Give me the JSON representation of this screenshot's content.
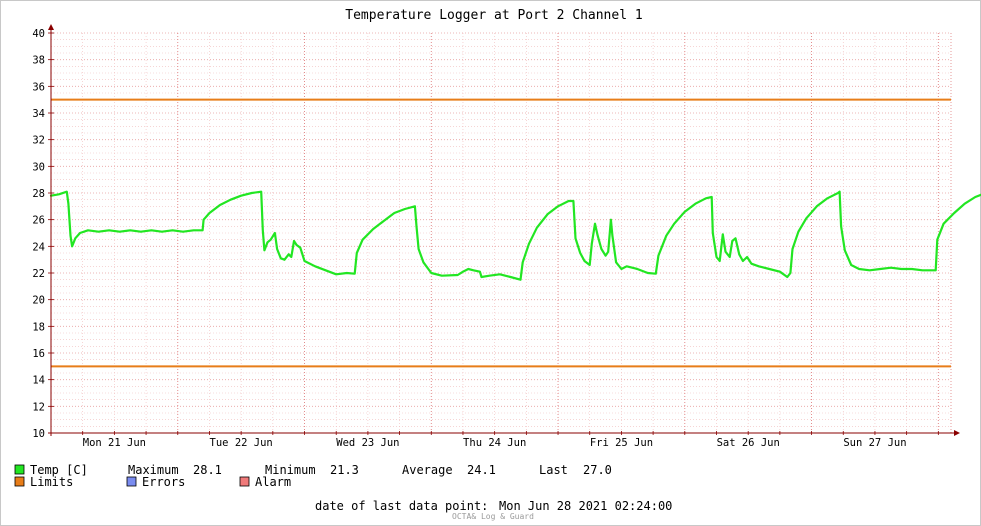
{
  "chart_data": {
    "type": "line",
    "title": "Temperature Logger at Port 2 Channel 1",
    "ylim": [
      10,
      40
    ],
    "yticks": [
      10,
      12,
      14,
      16,
      18,
      20,
      22,
      24,
      26,
      28,
      30,
      32,
      34,
      36,
      38,
      40
    ],
    "xrange_hours": [
      0,
      170.4
    ],
    "x_day_labels": [
      "Mon 21 Jun",
      "Tue 22 Jun",
      "Wed 23 Jun",
      "Thu 24 Jun",
      "Fri 25 Jun",
      "Sat 26 Jun",
      "Sun 27 Jun"
    ],
    "limits": [
      15,
      35
    ],
    "series": [
      {
        "name": "Temp [C]",
        "color": "#22e622",
        "points": [
          [
            0,
            27.8
          ],
          [
            1.5,
            27.9
          ],
          [
            3,
            28.1
          ],
          [
            3.3,
            27.2
          ],
          [
            3.7,
            24.8
          ],
          [
            4,
            24.0
          ],
          [
            4.6,
            24.6
          ],
          [
            5.5,
            25.0
          ],
          [
            7,
            25.2
          ],
          [
            9,
            25.1
          ],
          [
            11,
            25.2
          ],
          [
            13,
            25.1
          ],
          [
            15,
            25.2
          ],
          [
            17,
            25.1
          ],
          [
            19,
            25.2
          ],
          [
            21,
            25.1
          ],
          [
            23,
            25.2
          ],
          [
            25,
            25.1
          ],
          [
            27,
            25.2
          ],
          [
            28.7,
            25.2
          ],
          [
            28.9,
            26.0
          ],
          [
            30,
            26.5
          ],
          [
            32,
            27.1
          ],
          [
            34,
            27.5
          ],
          [
            36,
            27.8
          ],
          [
            38,
            28.0
          ],
          [
            39.8,
            28.1
          ],
          [
            40.1,
            25.2
          ],
          [
            40.4,
            23.7
          ],
          [
            41,
            24.3
          ],
          [
            41.6,
            24.5
          ],
          [
            42.4,
            25.0
          ],
          [
            42.8,
            23.8
          ],
          [
            43.5,
            23.1
          ],
          [
            44.2,
            23.0
          ],
          [
            45,
            23.4
          ],
          [
            45.5,
            23.2
          ],
          [
            46,
            24.4
          ],
          [
            46.5,
            24.1
          ],
          [
            47.2,
            23.9
          ],
          [
            48,
            22.9
          ],
          [
            50,
            22.5
          ],
          [
            52,
            22.2
          ],
          [
            54,
            21.9
          ],
          [
            56,
            22.0
          ],
          [
            57.5,
            21.95
          ],
          [
            57.9,
            23.5
          ],
          [
            59,
            24.5
          ],
          [
            61,
            25.3
          ],
          [
            63,
            25.9
          ],
          [
            65,
            26.5
          ],
          [
            67,
            26.8
          ],
          [
            68.9,
            27.0
          ],
          [
            69.2,
            25.5
          ],
          [
            69.6,
            23.8
          ],
          [
            70.5,
            22.8
          ],
          [
            72,
            22.0
          ],
          [
            74,
            21.8
          ],
          [
            77,
            21.85
          ],
          [
            78,
            22.1
          ],
          [
            79,
            22.3
          ],
          [
            80,
            22.2
          ],
          [
            81.2,
            22.1
          ],
          [
            81.5,
            21.7
          ],
          [
            83,
            21.8
          ],
          [
            85,
            21.9
          ],
          [
            87,
            21.7
          ],
          [
            88.9,
            21.5
          ],
          [
            89.3,
            22.8
          ],
          [
            90.5,
            24.2
          ],
          [
            92,
            25.4
          ],
          [
            94,
            26.4
          ],
          [
            96,
            27.0
          ],
          [
            98,
            27.4
          ],
          [
            98.9,
            27.4
          ],
          [
            99.3,
            24.6
          ],
          [
            100.2,
            23.5
          ],
          [
            101,
            22.9
          ],
          [
            102,
            22.6
          ],
          [
            102.4,
            24.2
          ],
          [
            103,
            25.7
          ],
          [
            103.5,
            24.8
          ],
          [
            104.2,
            23.8
          ],
          [
            105,
            23.3
          ],
          [
            105.5,
            23.6
          ],
          [
            106,
            26.0
          ],
          [
            106.3,
            24.8
          ],
          [
            107,
            22.8
          ],
          [
            108,
            22.3
          ],
          [
            109,
            22.5
          ],
          [
            111,
            22.3
          ],
          [
            113,
            22.0
          ],
          [
            114.5,
            21.95
          ],
          [
            115,
            23.3
          ],
          [
            116.5,
            24.8
          ],
          [
            118,
            25.7
          ],
          [
            120,
            26.6
          ],
          [
            122,
            27.2
          ],
          [
            124,
            27.6
          ],
          [
            125.1,
            27.7
          ],
          [
            125.3,
            25.0
          ],
          [
            126,
            23.2
          ],
          [
            126.6,
            22.9
          ],
          [
            127.2,
            24.9
          ],
          [
            127.7,
            23.6
          ],
          [
            128.5,
            23.2
          ],
          [
            129,
            24.4
          ],
          [
            129.6,
            24.6
          ],
          [
            130.3,
            23.4
          ],
          [
            131,
            22.9
          ],
          [
            131.8,
            23.2
          ],
          [
            132.6,
            22.7
          ],
          [
            134,
            22.5
          ],
          [
            136,
            22.3
          ],
          [
            138,
            22.1
          ],
          [
            139.4,
            21.7
          ],
          [
            140,
            22.0
          ],
          [
            140.4,
            23.8
          ],
          [
            141.5,
            25.1
          ],
          [
            143,
            26.1
          ],
          [
            145,
            27.0
          ],
          [
            147,
            27.6
          ],
          [
            149,
            28.0
          ],
          [
            149.3,
            28.1
          ],
          [
            149.6,
            25.5
          ],
          [
            150.3,
            23.7
          ],
          [
            151.5,
            22.6
          ],
          [
            153,
            22.3
          ],
          [
            155,
            22.2
          ],
          [
            157,
            22.3
          ],
          [
            159,
            22.4
          ],
          [
            161,
            22.3
          ],
          [
            163,
            22.3
          ],
          [
            165,
            22.2
          ],
          [
            167,
            22.2
          ],
          [
            167.5,
            22.2
          ],
          [
            167.8,
            24.5
          ],
          [
            169,
            25.7
          ],
          [
            171,
            26.5
          ],
          [
            173,
            27.2
          ],
          [
            175,
            27.7
          ],
          [
            177,
            28.0
          ],
          [
            178.7,
            28.2
          ],
          [
            179,
            25.9
          ],
          [
            179.8,
            23.9
          ],
          [
            181,
            22.8
          ],
          [
            183,
            22.3
          ],
          [
            185,
            22.2
          ],
          [
            187,
            22.3
          ],
          [
            189,
            22.4
          ],
          [
            190.5,
            22.4
          ],
          [
            191,
            21.9
          ],
          [
            192,
            21.6
          ],
          [
            192.7,
            21.4
          ],
          [
            193.5,
            21.9
          ],
          [
            195,
            22.0
          ],
          [
            196.5,
            22.0
          ],
          [
            197.5,
            21.8
          ],
          [
            198.6,
            22.0
          ],
          [
            199,
            23.8
          ],
          [
            200,
            24.6
          ],
          [
            201.5,
            25.5
          ],
          [
            203,
            26.2
          ],
          [
            204.5,
            26.8
          ],
          [
            205.5,
            27.0
          ]
        ]
      }
    ],
    "legend": {
      "temp_label": "Temp [C]",
      "maximum_label": "Maximum",
      "maximum_value": "28.1",
      "minimum_label": "Minimum",
      "minimum_value": "21.3",
      "average_label": "Average",
      "average_value": "24.1",
      "last_label": "Last",
      "last_value": "27.0",
      "limits_label": "Limits",
      "errors_label": "Errors",
      "alarm_label": "Alarm"
    },
    "colors": {
      "temp": "#22e622",
      "limits": "#e87d19",
      "errors": "#7a8cf0",
      "alarm": "#f07a7a",
      "grid": "#f0bcbc",
      "axis": "#8a0000"
    },
    "footer": {
      "date_label": "date of last data point:",
      "date_value": "Mon Jun 28 2021 02:24:00",
      "credit": "OCTA& Log & Guard"
    }
  }
}
